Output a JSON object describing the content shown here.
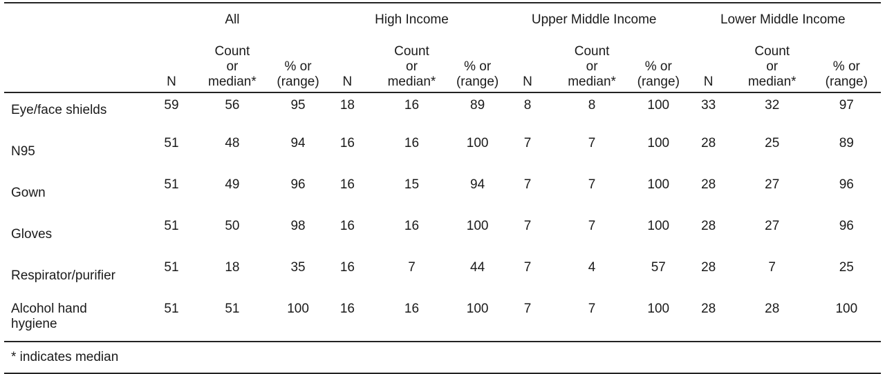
{
  "groups": [
    "All",
    "High Income",
    "Upper Middle Income",
    "Lower Middle Income"
  ],
  "col_headers": {
    "n": "N",
    "count_lines": [
      "Count",
      "or",
      "median*"
    ],
    "pct_lines": [
      "% or",
      "(range)"
    ]
  },
  "rows": [
    {
      "label": "Eye/face shields",
      "values": [
        "59",
        "56",
        "95",
        "18",
        "16",
        "89",
        "8",
        "8",
        "100",
        "33",
        "32",
        "97"
      ]
    },
    {
      "label": "N95",
      "values": [
        "51",
        "48",
        "94",
        "16",
        "16",
        "100",
        "7",
        "7",
        "100",
        "28",
        "25",
        "89"
      ]
    },
    {
      "label": "Gown",
      "values": [
        "51",
        "49",
        "96",
        "16",
        "15",
        "94",
        "7",
        "7",
        "100",
        "28",
        "27",
        "96"
      ]
    },
    {
      "label": "Gloves",
      "values": [
        "51",
        "50",
        "98",
        "16",
        "16",
        "100",
        "7",
        "7",
        "100",
        "28",
        "27",
        "96"
      ]
    },
    {
      "label": "Respirator/purifier",
      "values": [
        "51",
        "18",
        "35",
        "16",
        "7",
        "44",
        "7",
        "4",
        "57",
        "28",
        "7",
        "25"
      ]
    },
    {
      "label_lines": [
        "Alcohol hand",
        "hygiene"
      ],
      "values": [
        "51",
        "51",
        "100",
        "16",
        "16",
        "100",
        "7",
        "7",
        "100",
        "28",
        "28",
        "100"
      ]
    }
  ],
  "footnote": "* indicates median"
}
